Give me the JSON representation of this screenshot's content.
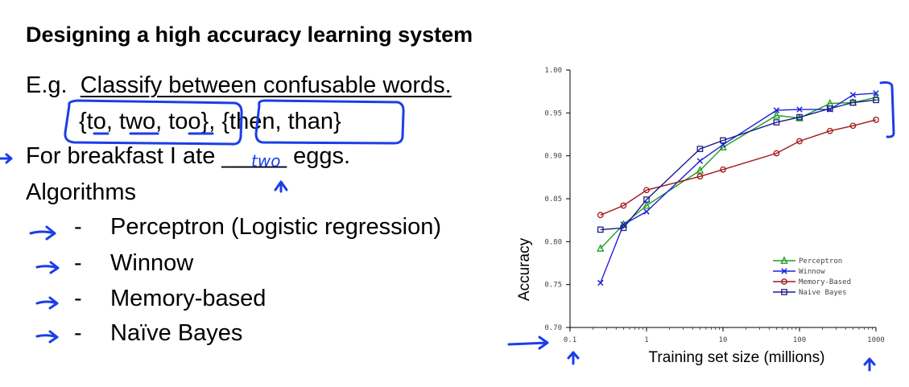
{
  "slide": {
    "title": "Designing a high accuracy learning system",
    "example_prefix": "E.g.",
    "example_text": "Classify between confusable words.",
    "word_set_1": "{to, two, too}",
    "word_separator": ",",
    "word_set_2": "{then, than}",
    "sentence_before": "For breakfast I ate",
    "blank": "_____",
    "sentence_after": "eggs.",
    "handwritten_answer": "two",
    "algorithms_heading": "Algorithms",
    "algorithms": [
      {
        "dash": "-",
        "label": "Perceptron (Logistic regression)"
      },
      {
        "dash": "-",
        "label": "Winnow"
      },
      {
        "dash": "-",
        "label": "Memory-based"
      },
      {
        "dash": "-",
        "label": "Naïve Bayes"
      }
    ],
    "ink_color": "#1a3ee8"
  },
  "chart_data": {
    "type": "line",
    "xlabel": "Training set size (millions)",
    "ylabel": "Accuracy",
    "x_scale": "log",
    "xlim": [
      0.1,
      1000
    ],
    "ylim": [
      0.7,
      1.0
    ],
    "x_ticks": [
      0.1,
      1,
      10,
      100,
      1000
    ],
    "x_tick_labels": [
      "0.1",
      "1",
      "10",
      "100",
      "1000"
    ],
    "y_ticks": [
      0.7,
      0.75,
      0.8,
      0.85,
      0.9,
      0.95,
      1.0
    ],
    "y_tick_labels": [
      "0.70",
      "0.75",
      "0.80",
      "0.85",
      "0.90",
      "0.95",
      "1.00"
    ],
    "legend_position": "bottom-right",
    "series": [
      {
        "name": "Perceptron",
        "color": "#1e9e1e",
        "marker": "triangle",
        "x": [
          0.25,
          0.5,
          1,
          5,
          10,
          50,
          100,
          250,
          500,
          1000
        ],
        "values": [
          0.792,
          0.82,
          0.842,
          0.883,
          0.91,
          0.947,
          0.944,
          0.961,
          0.962,
          0.968
        ]
      },
      {
        "name": "Winnow",
        "color": "#2020e0",
        "marker": "x",
        "x": [
          0.25,
          0.5,
          1,
          5,
          10,
          50,
          100,
          250,
          500,
          1000
        ],
        "values": [
          0.752,
          0.82,
          0.835,
          0.894,
          0.913,
          0.953,
          0.954,
          0.954,
          0.971,
          0.973
        ]
      },
      {
        "name": "Memory-Based",
        "color": "#a01818",
        "marker": "circle",
        "x": [
          0.25,
          0.5,
          1,
          5,
          10,
          50,
          100,
          250,
          500,
          1000
        ],
        "values": [
          0.831,
          0.842,
          0.86,
          0.876,
          0.884,
          0.903,
          0.917,
          0.929,
          0.935,
          0.942
        ]
      },
      {
        "name": "Naive Bayes",
        "color": "#1c1c8a",
        "marker": "square",
        "x": [
          0.25,
          0.5,
          1,
          5,
          10,
          50,
          100,
          250,
          500,
          1000
        ],
        "values": [
          0.814,
          0.816,
          0.849,
          0.908,
          0.918,
          0.939,
          0.945,
          0.955,
          0.962,
          0.965
        ]
      }
    ]
  }
}
